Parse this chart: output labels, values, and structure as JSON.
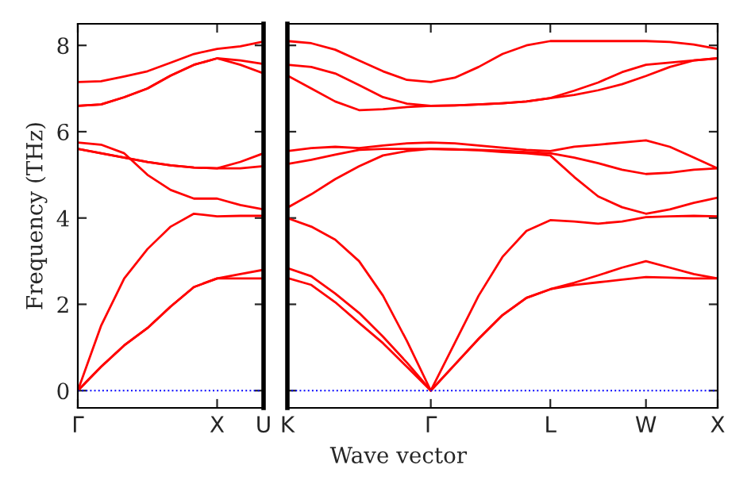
{
  "chart_data": [
    {
      "type": "line",
      "ylabel": "Frequency (THz)",
      "categories": [
        "Γ",
        null,
        null,
        null,
        null,
        null,
        "X",
        null,
        "U"
      ],
      "ylim": [
        -0.4,
        8.5
      ],
      "yticks": [
        0,
        2,
        4,
        6,
        8
      ],
      "grid": false,
      "legend": false,
      "marker": "none",
      "line_style": "solid",
      "ref_lines": [
        {
          "axis": "y",
          "value": 0,
          "color": "#0000ff",
          "line_style": "dotted"
        }
      ],
      "series": [
        {
          "color": "#ff0000",
          "values": [
            0,
            0.55,
            1.05,
            1.45,
            1.95,
            2.4,
            2.6,
            2.6,
            2.6
          ]
        },
        {
          "color": "#ff0000",
          "values": [
            0,
            0.55,
            1.05,
            1.45,
            1.95,
            2.4,
            2.6,
            2.7,
            2.8
          ]
        },
        {
          "color": "#ff0000",
          "values": [
            0,
            1.5,
            2.6,
            3.28,
            3.8,
            4.1,
            4.04,
            4.05,
            4.05
          ]
        },
        {
          "color": "#ff0000",
          "values": [
            5.75,
            5.7,
            5.5,
            5.0,
            4.65,
            4.45,
            4.45,
            4.3,
            4.2
          ]
        },
        {
          "color": "#ff0000",
          "values": [
            5.6,
            5.5,
            5.4,
            5.3,
            5.22,
            5.17,
            5.15,
            5.15,
            5.2
          ]
        },
        {
          "color": "#ff0000",
          "values": [
            5.6,
            5.5,
            5.4,
            5.3,
            5.22,
            5.17,
            5.15,
            5.3,
            5.5
          ]
        },
        {
          "color": "#ff0000",
          "values": [
            6.6,
            6.63,
            6.8,
            7.0,
            7.3,
            7.55,
            7.7,
            7.55,
            7.35
          ]
        },
        {
          "color": "#ff0000",
          "values": [
            6.6,
            6.63,
            6.8,
            7.0,
            7.3,
            7.55,
            7.7,
            7.65,
            7.57
          ]
        },
        {
          "color": "#ff0000",
          "values": [
            7.15,
            7.17,
            7.28,
            7.4,
            7.6,
            7.8,
            7.92,
            7.98,
            8.09
          ]
        }
      ]
    },
    {
      "type": "line",
      "xlabel": "Wave vector",
      "categories": [
        "K",
        null,
        null,
        null,
        null,
        null,
        "Γ",
        null,
        null,
        null,
        null,
        "L",
        null,
        null,
        null,
        "W",
        null,
        null,
        "X"
      ],
      "ylim": [
        -0.4,
        8.5
      ],
      "yticks": [
        {
          "value": 0,
          "label": null
        },
        {
          "value": 2,
          "label": null
        },
        {
          "value": 4,
          "label": null
        },
        {
          "value": 6,
          "label": null
        },
        {
          "value": 8,
          "label": null
        }
      ],
      "tick_labels": "x",
      "grid": false,
      "legend": false,
      "marker": "none",
      "line_style": "solid",
      "ref_lines": [
        {
          "axis": "y",
          "value": 0,
          "color": "#0000ff",
          "line_style": "dotted"
        }
      ],
      "series": [
        {
          "color": "#ff0000",
          "values": [
            2.61,
            2.45,
            2.05,
            1.57,
            1.1,
            0.55,
            0,
            0.6,
            1.2,
            1.75,
            2.15,
            2.35,
            2.45,
            2.51,
            2.57,
            2.63,
            2.62,
            2.6,
            2.6
          ]
        },
        {
          "color": "#ff0000",
          "values": [
            2.84,
            2.65,
            2.25,
            1.8,
            1.25,
            0.65,
            0,
            0.6,
            1.2,
            1.75,
            2.15,
            2.35,
            2.5,
            2.67,
            2.85,
            3.0,
            2.85,
            2.7,
            2.6
          ]
        },
        {
          "color": "#ff0000",
          "values": [
            4.0,
            3.8,
            3.5,
            3.0,
            2.2,
            1.15,
            0,
            1.1,
            2.2,
            3.1,
            3.7,
            3.95,
            3.92,
            3.87,
            3.92,
            4.02,
            4.04,
            4.05,
            4.04
          ]
        },
        {
          "color": "#ff0000",
          "values": [
            4.24,
            4.55,
            4.9,
            5.2,
            5.45,
            5.55,
            5.6,
            5.59,
            5.57,
            5.53,
            5.5,
            5.45,
            4.95,
            4.5,
            4.25,
            4.1,
            4.2,
            4.35,
            4.47
          ]
        },
        {
          "color": "#ff0000",
          "values": [
            5.25,
            5.35,
            5.47,
            5.58,
            5.6,
            5.6,
            5.6,
            5.59,
            5.58,
            5.56,
            5.53,
            5.5,
            5.4,
            5.27,
            5.12,
            5.02,
            5.05,
            5.12,
            5.15
          ]
        },
        {
          "color": "#ff0000",
          "values": [
            5.55,
            5.62,
            5.65,
            5.62,
            5.68,
            5.73,
            5.75,
            5.73,
            5.68,
            5.63,
            5.58,
            5.55,
            5.65,
            5.7,
            5.75,
            5.8,
            5.65,
            5.4,
            5.15
          ]
        },
        {
          "color": "#ff0000",
          "values": [
            7.3,
            7.0,
            6.7,
            6.5,
            6.52,
            6.57,
            6.6,
            6.61,
            6.63,
            6.66,
            6.7,
            6.78,
            6.85,
            6.96,
            7.1,
            7.29,
            7.5,
            7.65,
            7.7
          ]
        },
        {
          "color": "#ff0000",
          "values": [
            7.55,
            7.5,
            7.35,
            7.08,
            6.8,
            6.65,
            6.6,
            6.61,
            6.63,
            6.66,
            6.7,
            6.78,
            6.95,
            7.14,
            7.38,
            7.55,
            7.6,
            7.65,
            7.7
          ]
        },
        {
          "color": "#ff0000",
          "values": [
            8.1,
            8.05,
            7.9,
            7.65,
            7.4,
            7.2,
            7.15,
            7.25,
            7.5,
            7.8,
            8.0,
            8.1,
            8.1,
            8.1,
            8.1,
            8.1,
            8.08,
            8.02,
            7.92
          ]
        }
      ]
    }
  ]
}
